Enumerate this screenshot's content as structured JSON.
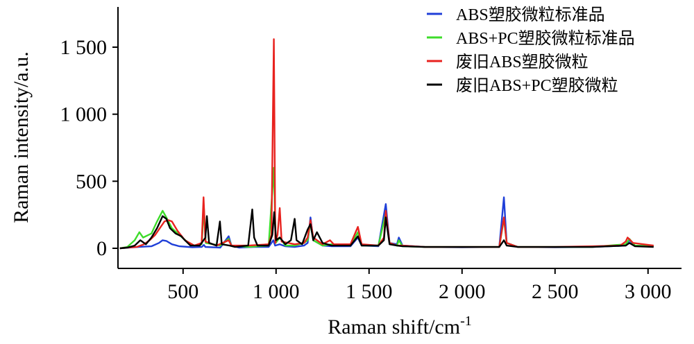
{
  "chart_data": {
    "type": "line",
    "title": "",
    "xlabel": "Raman shift/cm",
    "xlabel_sup": "-1",
    "ylabel": "Raman intensity/a.u.",
    "xlim": [
      150,
      3180
    ],
    "ylim": [
      -150,
      1800
    ],
    "x_ticks": [
      500,
      1000,
      1500,
      2000,
      2500,
      3000
    ],
    "x_tick_labels": [
      "500",
      "1 000",
      "1 500",
      "2 000",
      "2 500",
      "3 000"
    ],
    "y_ticks": [
      0,
      500,
      1000,
      1500
    ],
    "y_tick_labels": [
      "0",
      "500",
      "1 000",
      "1 500"
    ],
    "grid": false,
    "legend_position": "top-right",
    "series": [
      {
        "name": "ABS塑胶微粒标准品",
        "color": "#1f3fd8",
        "points": [
          [
            160,
            0
          ],
          [
            260,
            10
          ],
          [
            330,
            15
          ],
          [
            370,
            40
          ],
          [
            390,
            60
          ],
          [
            410,
            55
          ],
          [
            440,
            30
          ],
          [
            480,
            15
          ],
          [
            550,
            8
          ],
          [
            600,
            10
          ],
          [
            612,
            25
          ],
          [
            620,
            10
          ],
          [
            700,
            5
          ],
          [
            745,
            90
          ],
          [
            760,
            20
          ],
          [
            800,
            5
          ],
          [
            880,
            10
          ],
          [
            960,
            10
          ],
          [
            985,
            60
          ],
          [
            995,
            20
          ],
          [
            1020,
            30
          ],
          [
            1050,
            15
          ],
          [
            1100,
            10
          ],
          [
            1150,
            20
          ],
          [
            1170,
            40
          ],
          [
            1185,
            230
          ],
          [
            1200,
            60
          ],
          [
            1250,
            20
          ],
          [
            1300,
            15
          ],
          [
            1400,
            15
          ],
          [
            1440,
            80
          ],
          [
            1460,
            20
          ],
          [
            1550,
            15
          ],
          [
            1590,
            330
          ],
          [
            1610,
            40
          ],
          [
            1650,
            30
          ],
          [
            1660,
            80
          ],
          [
            1680,
            20
          ],
          [
            1800,
            10
          ],
          [
            2000,
            8
          ],
          [
            2200,
            10
          ],
          [
            2225,
            380
          ],
          [
            2240,
            40
          ],
          [
            2300,
            10
          ],
          [
            2500,
            8
          ],
          [
            2700,
            10
          ],
          [
            2880,
            20
          ],
          [
            2900,
            60
          ],
          [
            2930,
            20
          ],
          [
            3030,
            15
          ]
        ]
      },
      {
        "name": "ABS+PC塑胶微粒标准品",
        "color": "#3ddc2a",
        "points": [
          [
            160,
            0
          ],
          [
            200,
            10
          ],
          [
            240,
            60
          ],
          [
            265,
            120
          ],
          [
            285,
            80
          ],
          [
            330,
            110
          ],
          [
            360,
            200
          ],
          [
            390,
            280
          ],
          [
            410,
            230
          ],
          [
            440,
            150
          ],
          [
            480,
            100
          ],
          [
            520,
            50
          ],
          [
            560,
            20
          ],
          [
            600,
            30
          ],
          [
            612,
            300
          ],
          [
            622,
            40
          ],
          [
            700,
            20
          ],
          [
            745,
            70
          ],
          [
            760,
            20
          ],
          [
            850,
            10
          ],
          [
            960,
            20
          ],
          [
            988,
            600
          ],
          [
            998,
            40
          ],
          [
            1020,
            80
          ],
          [
            1050,
            20
          ],
          [
            1100,
            20
          ],
          [
            1150,
            40
          ],
          [
            1170,
            60
          ],
          [
            1185,
            200
          ],
          [
            1200,
            60
          ],
          [
            1250,
            20
          ],
          [
            1300,
            30
          ],
          [
            1400,
            20
          ],
          [
            1440,
            120
          ],
          [
            1460,
            20
          ],
          [
            1550,
            20
          ],
          [
            1590,
            260
          ],
          [
            1610,
            40
          ],
          [
            1650,
            20
          ],
          [
            1660,
            60
          ],
          [
            1680,
            15
          ],
          [
            1800,
            10
          ],
          [
            2000,
            10
          ],
          [
            2200,
            10
          ],
          [
            2225,
            220
          ],
          [
            2240,
            40
          ],
          [
            2300,
            10
          ],
          [
            2500,
            10
          ],
          [
            2700,
            10
          ],
          [
            2880,
            30
          ],
          [
            2900,
            70
          ],
          [
            2930,
            20
          ],
          [
            3030,
            15
          ]
        ]
      },
      {
        "name": "废旧ABS塑胶微粒",
        "color": "#e8221e",
        "points": [
          [
            160,
            0
          ],
          [
            200,
            5
          ],
          [
            250,
            10
          ],
          [
            290,
            30
          ],
          [
            320,
            60
          ],
          [
            350,
            100
          ],
          [
            380,
            160
          ],
          [
            400,
            200
          ],
          [
            420,
            210
          ],
          [
            440,
            200
          ],
          [
            470,
            130
          ],
          [
            510,
            60
          ],
          [
            560,
            20
          ],
          [
            600,
            40
          ],
          [
            610,
            380
          ],
          [
            620,
            50
          ],
          [
            680,
            20
          ],
          [
            745,
            60
          ],
          [
            760,
            20
          ],
          [
            850,
            20
          ],
          [
            960,
            30
          ],
          [
            975,
            100
          ],
          [
            988,
            1560
          ],
          [
            996,
            40
          ],
          [
            1008,
            100
          ],
          [
            1020,
            300
          ],
          [
            1030,
            50
          ],
          [
            1100,
            30
          ],
          [
            1150,
            40
          ],
          [
            1170,
            80
          ],
          [
            1185,
            210
          ],
          [
            1200,
            80
          ],
          [
            1250,
            30
          ],
          [
            1290,
            60
          ],
          [
            1310,
            30
          ],
          [
            1400,
            30
          ],
          [
            1440,
            160
          ],
          [
            1460,
            30
          ],
          [
            1550,
            20
          ],
          [
            1580,
            80
          ],
          [
            1590,
            280
          ],
          [
            1610,
            40
          ],
          [
            1650,
            20
          ],
          [
            1680,
            20
          ],
          [
            1800,
            10
          ],
          [
            2000,
            10
          ],
          [
            2200,
            10
          ],
          [
            2225,
            230
          ],
          [
            2240,
            40
          ],
          [
            2300,
            10
          ],
          [
            2500,
            10
          ],
          [
            2700,
            15
          ],
          [
            2850,
            20
          ],
          [
            2880,
            50
          ],
          [
            2890,
            80
          ],
          [
            2920,
            40
          ],
          [
            3030,
            20
          ]
        ]
      },
      {
        "name": "废旧ABS+PC塑胶微粒",
        "color": "#000000",
        "points": [
          [
            160,
            0
          ],
          [
            200,
            5
          ],
          [
            240,
            20
          ],
          [
            270,
            60
          ],
          [
            300,
            30
          ],
          [
            330,
            80
          ],
          [
            360,
            150
          ],
          [
            390,
            240
          ],
          [
            410,
            220
          ],
          [
            430,
            150
          ],
          [
            460,
            110
          ],
          [
            490,
            90
          ],
          [
            510,
            60
          ],
          [
            540,
            20
          ],
          [
            590,
            20
          ],
          [
            620,
            80
          ],
          [
            628,
            240
          ],
          [
            640,
            40
          ],
          [
            680,
            20
          ],
          [
            698,
            200
          ],
          [
            708,
            30
          ],
          [
            750,
            20
          ],
          [
            780,
            10
          ],
          [
            850,
            20
          ],
          [
            872,
            290
          ],
          [
            882,
            80
          ],
          [
            900,
            20
          ],
          [
            960,
            20
          ],
          [
            980,
            100
          ],
          [
            990,
            270
          ],
          [
            1000,
            60
          ],
          [
            1020,
            80
          ],
          [
            1050,
            30
          ],
          [
            1080,
            60
          ],
          [
            1100,
            220
          ],
          [
            1110,
            60
          ],
          [
            1140,
            30
          ],
          [
            1170,
            140
          ],
          [
            1185,
            180
          ],
          [
            1200,
            60
          ],
          [
            1220,
            120
          ],
          [
            1250,
            40
          ],
          [
            1300,
            20
          ],
          [
            1400,
            20
          ],
          [
            1440,
            90
          ],
          [
            1460,
            20
          ],
          [
            1550,
            20
          ],
          [
            1580,
            60
          ],
          [
            1590,
            230
          ],
          [
            1610,
            30
          ],
          [
            1650,
            20
          ],
          [
            1680,
            15
          ],
          [
            1800,
            10
          ],
          [
            2000,
            10
          ],
          [
            2200,
            10
          ],
          [
            2225,
            60
          ],
          [
            2240,
            20
          ],
          [
            2300,
            10
          ],
          [
            2500,
            10
          ],
          [
            2700,
            10
          ],
          [
            2880,
            20
          ],
          [
            2900,
            40
          ],
          [
            2930,
            15
          ],
          [
            3030,
            10
          ]
        ]
      }
    ]
  }
}
